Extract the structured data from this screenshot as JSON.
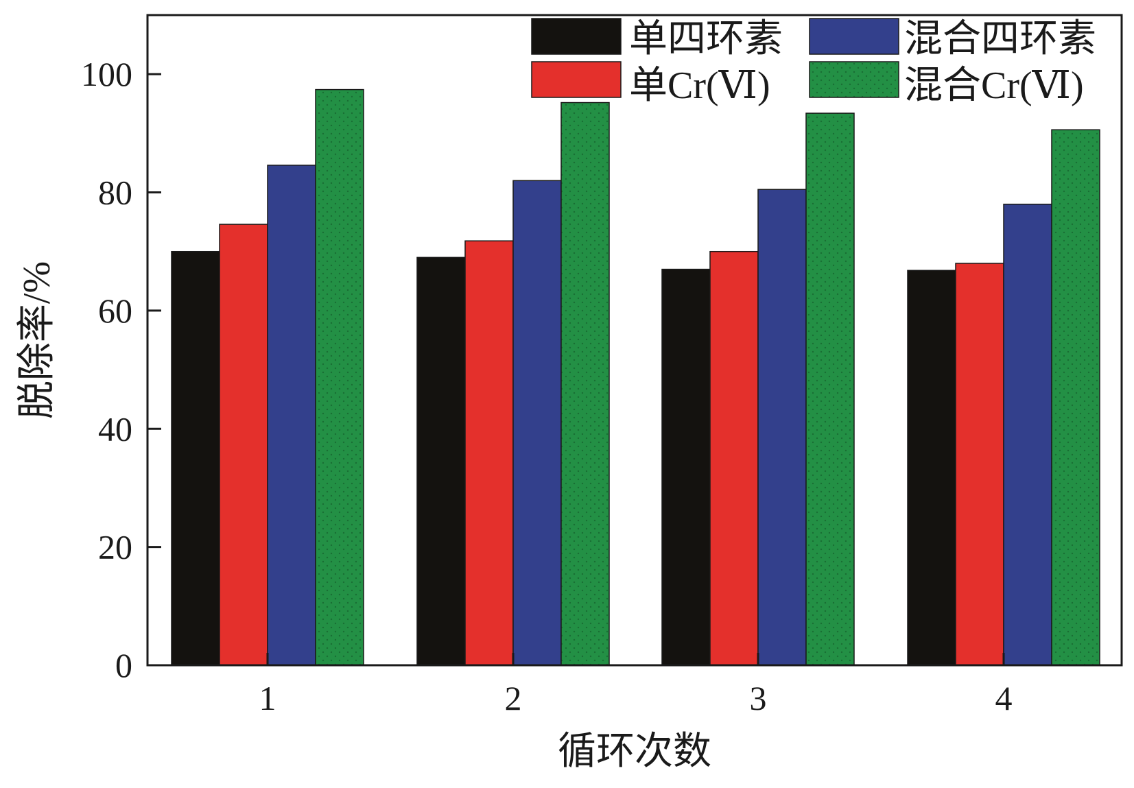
{
  "chart_data": {
    "type": "bar",
    "xlabel": "循环次数",
    "ylabel": "脱除率/%",
    "ylim": [
      0,
      110
    ],
    "yticks": [
      0,
      20,
      40,
      60,
      80,
      100
    ],
    "categories": [
      "1",
      "2",
      "3",
      "4"
    ],
    "series": [
      {
        "name": "单四环素",
        "color": "#14120f",
        "values": [
          70,
          69,
          67,
          66.8
        ]
      },
      {
        "name": "单Cr(Ⅵ)",
        "color": "#e4302c",
        "values": [
          74.6,
          71.8,
          70,
          68
        ]
      },
      {
        "name": "混合四环素",
        "color": "#33408c",
        "values": [
          84.6,
          82,
          80.5,
          78
        ]
      },
      {
        "name": "混合Cr(Ⅵ)",
        "color": "#239045",
        "values": [
          97.4,
          95.2,
          93.4,
          90.6
        ]
      }
    ],
    "legend_position": "top-right",
    "grid": false
  }
}
